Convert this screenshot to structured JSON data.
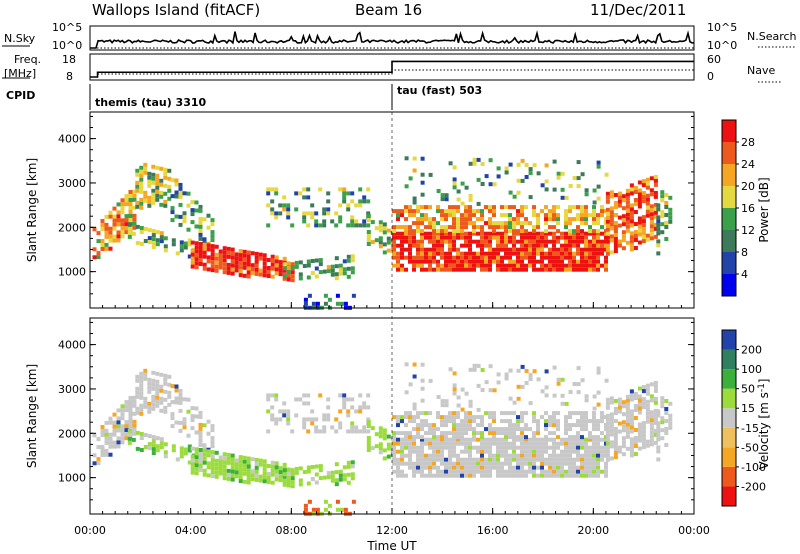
{
  "header": {
    "station": "Wallops Island (fitACF)",
    "beam": "Beam 16",
    "date": "11/Dec/2011"
  },
  "colors": {
    "power": [
      "#0000ee",
      "#2244aa",
      "#3d7a5a",
      "#3aa04a",
      "#e6d840",
      "#f5a623",
      "#ee5a1e",
      "#ee1111"
    ],
    "velocity": [
      "#ee1111",
      "#ee5a1e",
      "#f5a623",
      "#f0c060",
      "#c8c8c8",
      "#9bdc3c",
      "#3bb03b",
      "#2e8060",
      "#2244aa"
    ]
  },
  "chart_data": [
    {
      "type": "line",
      "name": "nsky-panel",
      "left_label": "N.Sky",
      "right_label": "N.Search",
      "yticks_left": [
        "10^5",
        "10^0"
      ],
      "yticks_right": [
        "10^5",
        "10^0"
      ],
      "x": [
        "00:00",
        "04:00",
        "08:00",
        "12:00",
        "16:00",
        "20:00",
        "00:00"
      ]
    },
    {
      "type": "line",
      "name": "freq-panel",
      "left_label_top": "Freq.",
      "left_label_bottom": "[MHz]",
      "right_label": "Nave",
      "yticks_left": [
        "18",
        "8"
      ],
      "yticks_right": [
        "60",
        "0"
      ],
      "freq_steps_mhz": [
        {
          "from_h": 0.3,
          "to_h": 12.0,
          "value": 10.5
        },
        {
          "from_h": 12.0,
          "to_h": 24.0,
          "value": 16.2
        }
      ]
    },
    {
      "type": "table",
      "name": "cpid-strip",
      "label": "CPID",
      "segments": [
        {
          "from_h": 0.3,
          "to_h": 12.0,
          "text": "themis (tau) 3310"
        },
        {
          "from_h": 12.0,
          "to_h": 24.0,
          "text": "tau (fast) 503"
        }
      ]
    },
    {
      "type": "heatmap",
      "name": "power-panel",
      "ylabel": "Slant Range [km]",
      "yticks": [
        "1000",
        "2000",
        "3000",
        "4000"
      ],
      "ylim": [
        180,
        4600
      ],
      "colorbar_label": "Power [dB]",
      "colorbar_ticks": [
        "4",
        "8",
        "12",
        "16",
        "20",
        "24",
        "28"
      ],
      "colorbar_range": [
        0,
        32
      ]
    },
    {
      "type": "heatmap",
      "name": "velocity-panel",
      "ylabel": "Slant Range [km]",
      "yticks": [
        "1000",
        "2000",
        "3000",
        "4000"
      ],
      "ylim": [
        180,
        4600
      ],
      "colorbar_label": "Velocity [m s",
      "colorbar_label_sup": "-1",
      "colorbar_label_end": "]",
      "colorbar_ticks": [
        "-200",
        "-100",
        "-50",
        "-15",
        "15",
        "50",
        "100",
        "200"
      ],
      "xlabel": "Time UT",
      "xticks": [
        "00:00",
        "04:00",
        "08:00",
        "12:00",
        "16:00",
        "20:00",
        "00:00"
      ],
      "xlim_hours": [
        0,
        24
      ]
    }
  ]
}
